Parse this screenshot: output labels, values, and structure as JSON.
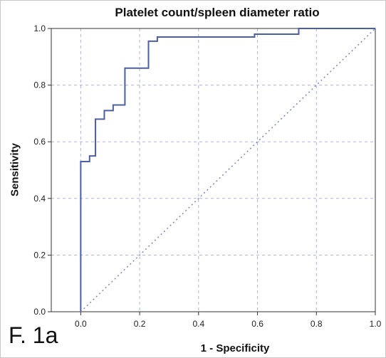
{
  "figure_label": "F. 1a",
  "chart_data": {
    "type": "line",
    "title": "Platelet count/spleen diameter ratio",
    "xlabel": "1 - Specificity",
    "ylabel": "Sensitivity",
    "xlim": [
      -0.1,
      1.0
    ],
    "ylim": [
      0.0,
      1.0
    ],
    "xticks": [
      "0.0",
      "0.2",
      "0.4",
      "0.6",
      "0.8",
      "1.0"
    ],
    "yticks": [
      "0.0",
      "0.2",
      "0.4",
      "0.6",
      "0.8",
      "1.0"
    ],
    "grid": true,
    "series": [
      {
        "kind": "roc",
        "color": "#4a5fa8",
        "x": [
          0,
          0,
          0.03,
          0.03,
          0.05,
          0.05,
          0.08,
          0.08,
          0.11,
          0.11,
          0.15,
          0.15,
          0.23,
          0.23,
          0.26,
          0.26,
          0.59,
          0.59,
          0.74,
          0.74,
          1.0
        ],
        "y": [
          0,
          0.53,
          0.53,
          0.55,
          0.55,
          0.68,
          0.68,
          0.71,
          0.71,
          0.73,
          0.73,
          0.86,
          0.86,
          0.955,
          0.955,
          0.97,
          0.97,
          0.98,
          0.98,
          1.0,
          1.0
        ]
      },
      {
        "kind": "reference",
        "color": "#7b86c4",
        "x": [
          0,
          1
        ],
        "y": [
          0,
          1
        ]
      }
    ]
  }
}
